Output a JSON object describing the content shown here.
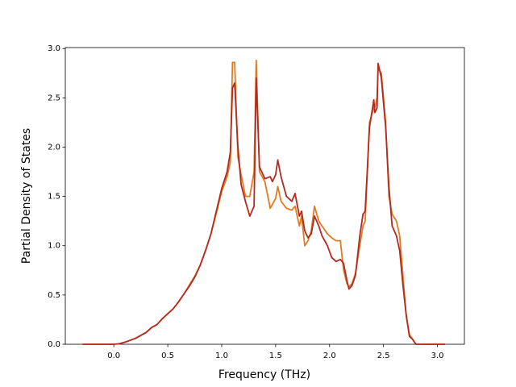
{
  "chart_data": {
    "type": "line",
    "xlabel": "Frequency (THz)",
    "ylabel": "Partial Density of States",
    "x": [
      -0.29,
      0,
      0.05,
      0.1,
      0.2,
      0.3,
      0.35,
      0.4,
      0.45,
      0.5,
      0.55,
      0.6,
      0.65,
      0.7,
      0.75,
      0.8,
      0.85,
      0.9,
      0.95,
      1.0,
      1.05,
      1.08,
      1.1,
      1.12,
      1.15,
      1.18,
      1.22,
      1.26,
      1.3,
      1.32,
      1.35,
      1.4,
      1.45,
      1.47,
      1.5,
      1.52,
      1.55,
      1.6,
      1.65,
      1.68,
      1.72,
      1.74,
      1.77,
      1.8,
      1.83,
      1.86,
      1.9,
      1.93,
      1.98,
      2.02,
      2.06,
      2.1,
      2.13,
      2.16,
      2.18,
      2.21,
      2.24,
      2.28,
      2.31,
      2.33,
      2.37,
      2.41,
      2.42,
      2.44,
      2.45,
      2.48,
      2.52,
      2.55,
      2.58,
      2.62,
      2.65,
      2.68,
      2.71,
      2.74,
      2.77,
      2.8,
      3.07
    ],
    "series": [
      {
        "color": "#e07b20",
        "values": [
          0,
          0,
          0.005,
          0.02,
          0.06,
          0.12,
          0.17,
          0.2,
          0.26,
          0.31,
          0.36,
          0.43,
          0.51,
          0.6,
          0.69,
          0.8,
          0.95,
          1.12,
          1.33,
          1.55,
          1.7,
          1.85,
          2.86,
          2.86,
          1.9,
          1.72,
          1.5,
          1.5,
          1.75,
          2.88,
          1.75,
          1.65,
          1.38,
          1.42,
          1.48,
          1.6,
          1.45,
          1.38,
          1.36,
          1.4,
          1.2,
          1.3,
          1.0,
          1.05,
          1.15,
          1.4,
          1.25,
          1.2,
          1.12,
          1.08,
          1.05,
          1.05,
          0.75,
          0.62,
          0.58,
          0.62,
          0.72,
          1.0,
          1.2,
          1.25,
          2.25,
          2.4,
          2.4,
          2.5,
          2.8,
          2.75,
          2.25,
          1.5,
          1.32,
          1.25,
          1.1,
          0.7,
          0.3,
          0.1,
          0.05,
          0,
          0
        ]
      },
      {
        "color": "#b22a22",
        "values": [
          0,
          0,
          0.005,
          0.02,
          0.06,
          0.12,
          0.17,
          0.2,
          0.26,
          0.31,
          0.36,
          0.43,
          0.51,
          0.59,
          0.68,
          0.8,
          0.95,
          1.12,
          1.35,
          1.58,
          1.75,
          1.95,
          2.6,
          2.65,
          2.0,
          1.62,
          1.45,
          1.3,
          1.4,
          2.7,
          1.8,
          1.68,
          1.7,
          1.65,
          1.72,
          1.87,
          1.7,
          1.5,
          1.45,
          1.53,
          1.3,
          1.35,
          1.15,
          1.08,
          1.12,
          1.3,
          1.2,
          1.1,
          1.0,
          0.88,
          0.84,
          0.86,
          0.82,
          0.65,
          0.56,
          0.6,
          0.7,
          1.1,
          1.32,
          1.35,
          2.2,
          2.48,
          2.35,
          2.4,
          2.85,
          2.7,
          2.2,
          1.6,
          1.2,
          1.1,
          0.95,
          0.6,
          0.3,
          0.08,
          0.05,
          0,
          0
        ]
      }
    ],
    "xlim": [
      -0.45,
      3.25
    ],
    "ylim": [
      0,
      3.01
    ],
    "xticks": [
      {
        "value": 0,
        "label": "0.0"
      },
      {
        "value": 0.5,
        "label": "0.5"
      },
      {
        "value": 1,
        "label": "1.0"
      },
      {
        "value": 1.5,
        "label": "1.5"
      },
      {
        "value": 2,
        "label": "2.0"
      },
      {
        "value": 2.5,
        "label": "2.5"
      },
      {
        "value": 3,
        "label": "3.0"
      }
    ],
    "yticks": [
      {
        "value": 0,
        "label": "0.0"
      },
      {
        "value": 0.5,
        "label": "0.5"
      },
      {
        "value": 1,
        "label": "1.0"
      },
      {
        "value": 1.5,
        "label": "1.5"
      },
      {
        "value": 2,
        "label": "2.0"
      },
      {
        "value": 2.5,
        "label": "2.5"
      },
      {
        "value": 3,
        "label": "3.0"
      }
    ],
    "grid": false
  }
}
